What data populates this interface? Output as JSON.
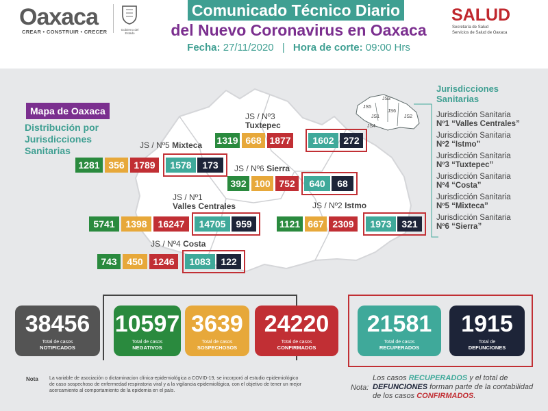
{
  "header": {
    "logo_text": "Oaxaca",
    "logo_tagline": "CREAR • CONSTRUIR • CRECER",
    "seal_text": "Gobierno del Estado",
    "title_line1": "Comunicado Técnico Diario",
    "title_line2": "del Nuevo Coronavirus en Oaxaca",
    "date_label": "Fecha:",
    "date_value": "27/11/2020",
    "cutoff_label": "Hora de corte:",
    "cutoff_value": "09:00 Hrs",
    "salud": "SALUD",
    "salud_sub1": "Secretaría de Salud",
    "salud_sub2": "Servicios de Salud de Oaxaca"
  },
  "map": {
    "title": "Mapa de Oaxaca",
    "subtitle": "Distribución por Jurisdicciones Sanitarias",
    "inset_labels": [
      "JS5",
      "JS3",
      "JS6",
      "JS1",
      "JS4",
      "JS2"
    ]
  },
  "jurisdictions": {
    "tuxtepec": {
      "label1": "JS / Nº3",
      "label2": "Tuxtepec",
      "v": [
        "1319",
        "668",
        "1877",
        "1602",
        "272"
      ]
    },
    "mixteca": {
      "label1": "JS / Nº5",
      "label2": "Mixteca",
      "v": [
        "1281",
        "356",
        "1789",
        "1578",
        "173"
      ]
    },
    "sierra": {
      "label1": "JS / Nº6",
      "label2": "Sierra",
      "v": [
        "392",
        "100",
        "752",
        "640",
        "68"
      ]
    },
    "valles": {
      "label1": "JS / Nº1",
      "label2": "Valles Centrales",
      "v": [
        "5741",
        "1398",
        "16247",
        "14705",
        "959"
      ]
    },
    "istmo": {
      "label1": "JS / Nº2",
      "label2": "Istmo",
      "v": [
        "1121",
        "667",
        "2309",
        "1973",
        "321"
      ]
    },
    "costa": {
      "label1": "JS / Nº4",
      "label2": "Costa",
      "v": [
        "743",
        "450",
        "1246",
        "1083",
        "122"
      ]
    }
  },
  "legend": {
    "title": "Jurisdicciones Sanitarias",
    "items": [
      {
        "prefix": "Jurisdicción Sanitaria",
        "name": "Nº1 “Valles Centrales”"
      },
      {
        "prefix": "Jurisdicción Sanitaria",
        "name": "Nº2 “Istmo”"
      },
      {
        "prefix": "Jurisdicción Sanitaria",
        "name": "Nº3 “Tuxtepec”"
      },
      {
        "prefix": "Jurisdicción Sanitaria",
        "name": "Nº4 “Costa”"
      },
      {
        "prefix": "Jurisdicción Sanitaria",
        "name": "Nº5 “Mixteca”"
      },
      {
        "prefix": "Jurisdicción Sanitaria",
        "name": "Nº6 “Sierra”"
      }
    ]
  },
  "totals": [
    {
      "value": "38456",
      "label": "Total de casos",
      "bold": "NOTIFICADOS"
    },
    {
      "value": "10597",
      "label": "Total de casos",
      "bold": "NEGATIVOS"
    },
    {
      "value": "3639",
      "label": "Total de casos",
      "bold": "SOSPECHOSOS"
    },
    {
      "value": "24220",
      "label": "Total de casos",
      "bold": "CONFIRMADOS"
    },
    {
      "value": "21581",
      "label": "Total de casos",
      "bold": "RECUPERADOS"
    },
    {
      "value": "1915",
      "label": "Total de",
      "bold": "DEFUNCIONES"
    }
  ],
  "notes": {
    "left_label": "Nota",
    "left_text": "La variable de asociación o dictaminacion clínica-epidemiológica a COVID-19, se incorporó al estudio epidemiológico de caso sospechoso de enfermedad respiratoria viral y a la vigilancia epidemiológica, con el objetivo de tener un mejor acercamiento al comportamiento de la epidemia en el país.",
    "right_label": "Nota:",
    "right_t1": "Los casos ",
    "right_t2": "RECUPERADOS",
    "right_t3": " y el total de ",
    "right_t4": "DEFUNCIONES",
    "right_t5": " forman parte de la contabilidad de los casos ",
    "right_t6": "CONFIRMADOS",
    "right_t7": "."
  },
  "colors": {
    "negativos": "#2a8a3e",
    "sospechosos": "#e7a83a",
    "confirmados": "#c12f34",
    "recuperados": "#3fa99a",
    "defunciones": "#1d2438",
    "notificados": "#545454",
    "purple": "#7b2f8f"
  }
}
